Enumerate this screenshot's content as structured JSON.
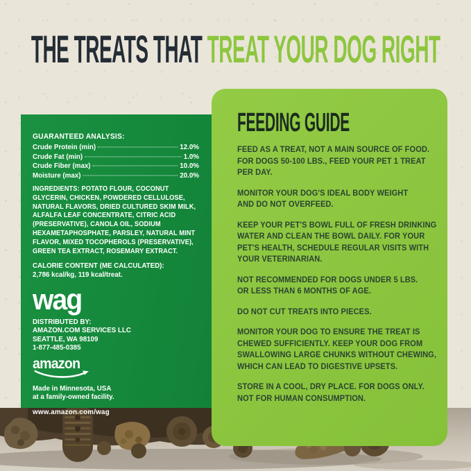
{
  "colors": {
    "brand_green": "#8dc63f",
    "panel_green": "#15893c",
    "headline_dark": "#242d36",
    "fg_title": "#1a2b1f",
    "fg_body": "#2a4430",
    "background": "#eae5d9"
  },
  "headline": {
    "dark": "THE TREATS THAT",
    "green": " TREAT YOUR DOG RIGHT"
  },
  "left_panel": {
    "guaranteed_analysis": {
      "title": "GUARANTEED ANALYSIS:",
      "rows": [
        {
          "label": "Crude Protein (min)",
          "value": "12.0%"
        },
        {
          "label": "Crude Fat (min)",
          "value": "1.0%"
        },
        {
          "label": "Crude Fiber (max)",
          "value": "10.0%"
        },
        {
          "label": "Moisture (max)",
          "value": "20.0%"
        }
      ]
    },
    "ingredients": "INGREDIENTS: POTATO FLOUR, COCONUT\nGLYCERIN, CHICKEN, POWDERED CELLULOSE,\nNATURAL FLAVORS, DRIED CULTURED SKIM MILK,\nALFALFA LEAF CONCENTRATE, CITRIC ACID\n(PRESERVATIVE), CANOLA OIL, SODIUM\nHEXAMETAPHOSPHATE, PARSLEY, NATURAL MINT\nFLAVOR, MIXED TOCOPHEROLS (PRESERVATIVE),\nGREEN TEA EXTRACT, ROSEMARY EXTRACT.",
    "calorie_content": {
      "title": "CALORIE CONTENT (ME CALCULATED):",
      "value": "2,786 kcal/kg, 119 kcal/treat."
    },
    "wag_logo": "wag",
    "distributed_by": {
      "title": "DISTRIBUTED BY:",
      "lines": [
        "AMAZON.COM SERVICES LLC",
        "SEATTLE, WA 98109",
        "1-877-485-0385"
      ]
    },
    "amazon_logo": "amazon",
    "made_in": "Made in Minnesota, USA\nat a family-owned facility.",
    "website": "www.amazon.com/wag"
  },
  "feeding_guide": {
    "title": "FEEDING GUIDE",
    "paragraphs": [
      "FEED AS A TREAT, NOT A MAIN SOURCE OF FOOD.\nFOR DOGS 50-100 LBS., FEED YOUR PET 1 TREAT\nPER DAY.",
      "MONITOR YOUR DOG'S IDEAL BODY WEIGHT\nAND DO NOT OVERFEED.",
      "KEEP YOUR PET'S BOWL FULL OF FRESH DRINKING\nWATER AND CLEAN THE BOWL DAILY. FOR YOUR\nPET'S HEALTH, SCHEDULE REGULAR VISITS WITH\nYOUR VETERINARIAN.",
      "NOT RECOMMENDED FOR DOGS UNDER 5 LBS.\nOR LESS THAN 6 MONTHS OF AGE.",
      "DO NOT CUT TREATS INTO PIECES.",
      "MONITOR YOUR DOG TO ENSURE THE TREAT IS\nCHEWED SUFFICIENTLY. KEEP YOUR DOG FROM\nSWALLOWING LARGE CHUNKS WITHOUT CHEWING,\nWHICH CAN LEAD TO DIGESTIVE UPSETS.",
      "STORE IN A COOL, DRY PLACE. FOR DOGS ONLY.\nNOT FOR HUMAN CONSUMPTION."
    ]
  }
}
